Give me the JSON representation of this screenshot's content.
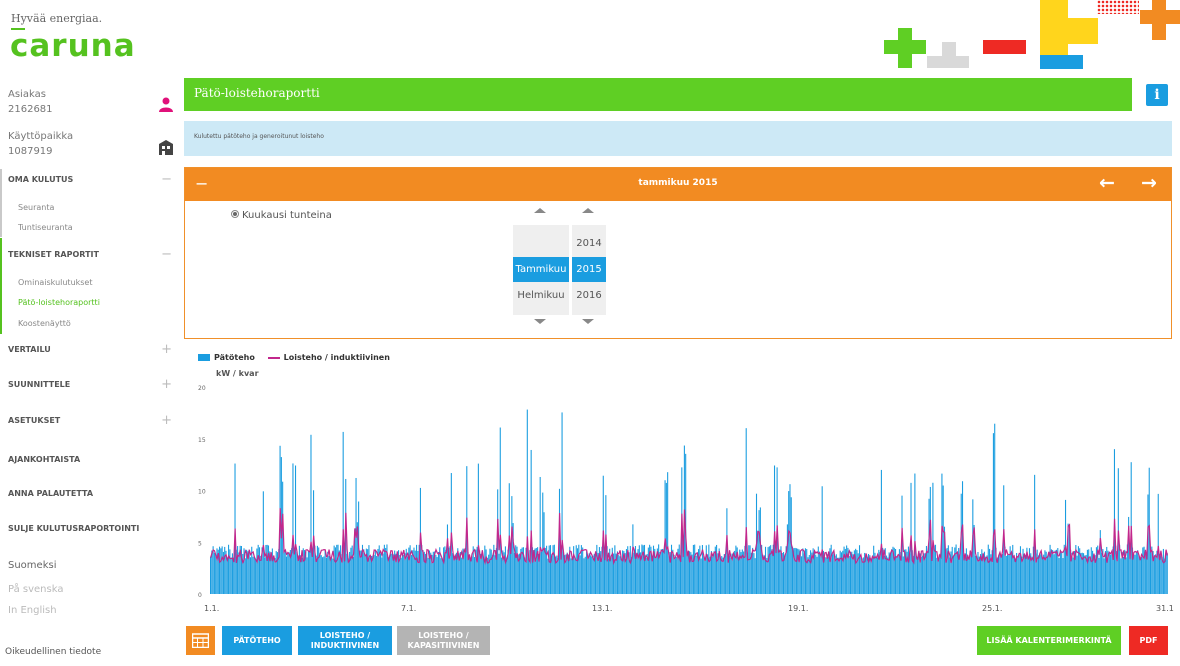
{
  "brand": {
    "tagline": "Hyvää energiaa.",
    "logo": "caruna",
    "color": "#55c21f"
  },
  "customer": {
    "label": "Asiakas",
    "value": "2162681",
    "icon": "person-icon"
  },
  "site": {
    "label": "Käyttöpaikka",
    "value": "1087919",
    "icon": "building-icon"
  },
  "nav": {
    "oma_kulutus": {
      "label": "OMA KULUTUS",
      "toggle": "−",
      "items": [
        "Seuranta",
        "Tuntiseuranta"
      ]
    },
    "tekniset": {
      "label": "TEKNISET RAPORTIT",
      "toggle": "−",
      "items": [
        "Ominaiskulutukset",
        "Pätö-loistehoraportti",
        "Koostenäyttö"
      ],
      "active": "Pätö-loistehoraportti"
    },
    "vertailu": {
      "label": "VERTAILU",
      "toggle": "+"
    },
    "suunnittele": {
      "label": "SUUNNITTELE",
      "toggle": "+"
    },
    "asetukset": {
      "label": "ASETUKSET",
      "toggle": "+"
    },
    "ajankohtaista": {
      "label": "AJANKOHTAISTA"
    },
    "palaute": {
      "label": "ANNA PALAUTETTA"
    },
    "sulje": {
      "label": "SULJE KULUTUSRAPORTOINTI"
    }
  },
  "languages": [
    "Suomeksi",
    "På svenska",
    "In English"
  ],
  "legal": "Oikeudellinen tiedote",
  "page": {
    "title": "Pätö-loistehoraportti",
    "description": "Kulutettu pätöteho ja generoitunut loisteho",
    "info_icon": "info-icon"
  },
  "date_panel": {
    "minus": "−",
    "month_label": "tammikuu 2015",
    "prev_icon": "arrow-left-icon",
    "next_icon": "arrow-right-icon",
    "prev_glyph": "←",
    "next_glyph": "→",
    "radio_label": "Kuukausi tunteina",
    "months": [
      "",
      "Tammikuu",
      "Helmikuu"
    ],
    "years": [
      "2014",
      "2015",
      "2016"
    ],
    "selected_month": "Tammikuu",
    "selected_year": "2015"
  },
  "chart_data": {
    "type": "bar",
    "title": "",
    "ylabel": "kW / kvar",
    "ylim": [
      0,
      20
    ],
    "yticks": [
      0,
      5,
      10,
      15,
      20
    ],
    "xticks": [
      "1.1.",
      "7.1.",
      "13.1.",
      "19.1.",
      "25.1.",
      "31.1"
    ],
    "legend": [
      "Pätöteho",
      "Loisteho / induktiivinen"
    ],
    "series_colors": {
      "Pätöteho": "#1a9de0",
      "Loisteho / induktiivinen": "#c2278c"
    },
    "hours": 744,
    "note": "Hourly values for January 2015: active power bars mostly 3–5 kW with daily peaks of 10–18 kW; inductive reactive power line fluctuates 3–8 kvar."
  },
  "buttons": {
    "calendar_icon": "calendar-icon",
    "patoteho": "PÄTÖTEHO",
    "loisteho_ind": [
      "LOISTEHO /",
      "INDUKTIIVINEN"
    ],
    "loisteho_kap": [
      "LOISTEHO /",
      "KAPASITIIVINEN"
    ],
    "kalenteri": "LISÄÄ KALENTERIMERKINTÄ",
    "pdf": "PDF"
  }
}
